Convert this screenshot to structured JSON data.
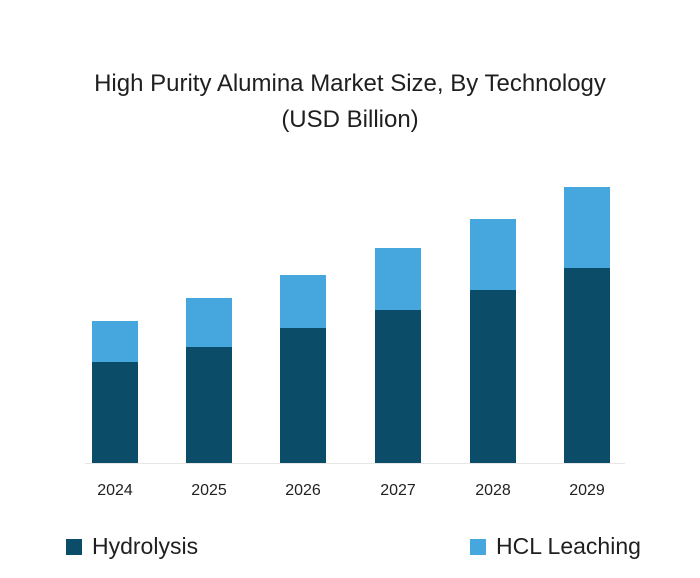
{
  "chart_data": {
    "type": "bar",
    "stacked": true,
    "title": "High Purity Alumina Market Size, By Technology",
    "subtitle": "(USD Billion)",
    "xlabel": "",
    "ylabel": "",
    "categories": [
      "2024",
      "2025",
      "2026",
      "2027",
      "2028",
      "2029"
    ],
    "series": [
      {
        "name": "Hydrolysis",
        "color": "#0b4d68",
        "values": [
          1.01,
          1.16,
          1.35,
          1.53,
          1.73,
          1.95
        ]
      },
      {
        "name": "HCL Leaching",
        "color": "#45a7de",
        "values": [
          0.41,
          0.49,
          0.53,
          0.62,
          0.71,
          0.81
        ]
      }
    ],
    "value_note": "relative values estimated from bar heights; no y-axis shown",
    "grid": false,
    "legend_position": "bottom"
  },
  "title_line1": "High Purity Alumina Market Size, By Technology",
  "title_line2": "(USD Billion)",
  "legend": [
    {
      "label": "Hydrolysis",
      "color": "#0b4d68"
    },
    {
      "label": "HCL Leaching",
      "color": "#45a7de"
    }
  ]
}
